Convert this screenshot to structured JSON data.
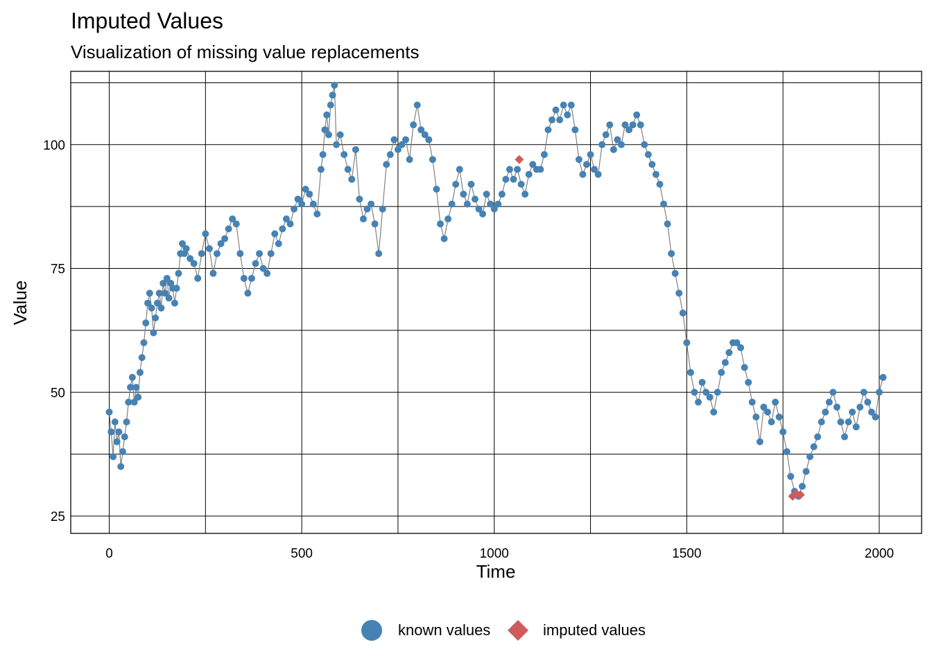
{
  "title": "Imputed Values",
  "subtitle": "Visualization of missing value replacements",
  "legend": {
    "known_label": "known values",
    "imputed_label": "imputed values"
  },
  "colors": {
    "known": "#4682B4",
    "imputed": "#CD5C5C",
    "line": "#808080",
    "grid": "#000000"
  },
  "chart_data": {
    "type": "line",
    "xlabel": "Time",
    "ylabel": "Value",
    "xlim": [
      -100,
      2110
    ],
    "ylim": [
      21.5,
      114.8
    ],
    "xticks": [
      0,
      500,
      1000,
      1500,
      2000
    ],
    "yticks": [
      25,
      50,
      75,
      100
    ],
    "grid": true,
    "legend_position": "bottom",
    "series": [
      {
        "name": "known values",
        "marker": "circle",
        "x": [
          0,
          5,
          10,
          15,
          20,
          25,
          30,
          35,
          40,
          45,
          50,
          55,
          60,
          65,
          70,
          75,
          80,
          85,
          90,
          95,
          100,
          105,
          110,
          115,
          120,
          125,
          130,
          135,
          140,
          145,
          150,
          155,
          160,
          165,
          170,
          175,
          180,
          185,
          190,
          195,
          200,
          210,
          220,
          230,
          240,
          250,
          260,
          270,
          280,
          290,
          300,
          310,
          320,
          330,
          340,
          350,
          360,
          370,
          380,
          390,
          400,
          410,
          420,
          430,
          440,
          450,
          460,
          470,
          480,
          490,
          500,
          510,
          520,
          530,
          540,
          550,
          555,
          560,
          565,
          570,
          575,
          580,
          585,
          590,
          600,
          610,
          620,
          630,
          640,
          650,
          660,
          670,
          680,
          690,
          700,
          710,
          720,
          730,
          740,
          750,
          760,
          770,
          780,
          790,
          800,
          810,
          820,
          830,
          840,
          850,
          860,
          870,
          880,
          890,
          900,
          910,
          920,
          930,
          940,
          950,
          960,
          970,
          980,
          990,
          1000,
          1010,
          1020,
          1030,
          1040,
          1050,
          1060,
          1070,
          1080,
          1090,
          1100,
          1110,
          1120,
          1130,
          1140,
          1150,
          1160,
          1170,
          1180,
          1190,
          1200,
          1210,
          1220,
          1230,
          1240,
          1250,
          1260,
          1270,
          1280,
          1290,
          1300,
          1310,
          1320,
          1330,
          1340,
          1350,
          1360,
          1370,
          1380,
          1390,
          1400,
          1410,
          1420,
          1430,
          1440,
          1450,
          1460,
          1470,
          1480,
          1490,
          1500,
          1510,
          1520,
          1530,
          1540,
          1550,
          1560,
          1570,
          1580,
          1590,
          1600,
          1610,
          1620,
          1630,
          1640,
          1650,
          1660,
          1670,
          1680,
          1690,
          1700,
          1710,
          1720,
          1730,
          1740,
          1750,
          1760,
          1770,
          1780,
          1790,
          1800,
          1810,
          1820,
          1830,
          1840,
          1850,
          1860,
          1870,
          1880,
          1890,
          1900,
          1910,
          1920,
          1930,
          1940,
          1950,
          1960,
          1970,
          1980,
          1990,
          2000,
          2010
        ],
        "y": [
          46,
          42,
          37,
          44,
          40,
          42,
          35,
          38,
          41,
          44,
          48,
          51,
          53,
          48,
          51,
          49,
          54,
          57,
          60,
          64,
          68,
          70,
          67,
          62,
          65,
          68,
          70,
          67,
          72,
          70,
          73,
          69,
          72,
          71,
          68,
          71,
          74,
          78,
          80,
          78,
          79,
          77,
          76,
          73,
          78,
          82,
          79,
          74,
          78,
          80,
          81,
          83,
          85,
          84,
          78,
          73,
          70,
          73,
          76,
          78,
          75,
          74,
          78,
          82,
          80,
          83,
          85,
          84,
          87,
          89,
          88,
          91,
          90,
          88,
          86,
          95,
          98,
          103,
          106,
          102,
          108,
          110,
          112,
          100,
          102,
          98,
          95,
          93,
          99,
          89,
          85,
          87,
          88,
          84,
          78,
          87,
          96,
          98,
          101,
          99,
          100,
          101,
          97,
          104,
          108,
          103,
          102,
          101,
          97,
          91,
          84,
          81,
          85,
          88,
          92,
          95,
          90,
          88,
          92,
          89,
          87,
          86,
          90,
          88,
          87,
          88,
          90,
          93,
          95,
          93,
          95,
          92,
          90,
          94,
          96,
          95,
          95,
          98,
          103,
          105,
          107,
          105,
          108,
          106,
          108,
          103,
          97,
          94,
          96,
          98,
          95,
          94,
          100,
          102,
          104,
          99,
          101,
          100,
          104,
          103,
          104,
          106,
          104,
          100,
          98,
          96,
          94,
          92,
          88,
          84,
          78,
          74,
          70,
          66,
          60,
          54,
          50,
          48,
          52,
          50,
          49,
          46,
          50,
          54,
          56,
          58,
          60,
          60,
          59,
          55,
          52,
          48,
          45,
          40,
          47,
          46,
          44,
          48,
          45,
          42,
          38,
          33,
          30,
          29,
          31,
          34,
          37,
          39,
          41,
          44,
          46,
          48,
          50,
          47,
          44,
          41,
          44,
          46,
          43,
          47,
          50,
          48,
          46,
          45,
          50,
          53
        ]
      },
      {
        "name": "imputed values",
        "marker": "diamond",
        "x": [
          1065,
          1775,
          1785,
          1795
        ],
        "y": [
          97,
          29,
          29.5,
          29.3
        ]
      }
    ]
  }
}
